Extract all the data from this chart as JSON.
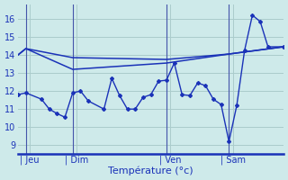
{
  "background_color": "#ceeaea",
  "line_color": "#1a32b8",
  "grid_color": "#aacccc",
  "xlabel": "Température (°c)",
  "xlabel_color": "#1a32b8",
  "ylabel_ticks": [
    9,
    10,
    11,
    12,
    13,
    14,
    15,
    16
  ],
  "ylim": [
    8.5,
    16.8
  ],
  "xlim": [
    0,
    34
  ],
  "day_labels": [
    "| Jeu",
    "| Dim",
    "| Ven",
    "| Sam"
  ],
  "day_positions": [
    1.5,
    7.5,
    19.5,
    27.5
  ],
  "vline_positions": [
    1,
    7,
    19,
    27
  ],
  "smooth1_x": [
    0,
    1,
    7,
    19,
    27,
    34
  ],
  "smooth1_y": [
    14.0,
    14.35,
    13.85,
    13.75,
    14.05,
    14.45
  ],
  "smooth2_x": [
    0,
    1,
    7,
    19,
    27,
    34
  ],
  "smooth2_y": [
    14.0,
    14.35,
    13.2,
    13.55,
    14.05,
    14.45
  ],
  "jagged_x": [
    0,
    1,
    3,
    4,
    5,
    6,
    7,
    8,
    9,
    11,
    12,
    13,
    14,
    15,
    16,
    17,
    18,
    19,
    20,
    21,
    22,
    23,
    24,
    25,
    26,
    27,
    28,
    29,
    30,
    31,
    32,
    34
  ],
  "jagged_y": [
    11.8,
    11.9,
    11.55,
    11.0,
    10.75,
    10.55,
    11.9,
    12.0,
    11.45,
    11.0,
    12.7,
    11.75,
    11.0,
    11.0,
    11.65,
    11.8,
    12.55,
    12.6,
    13.55,
    11.8,
    11.75,
    12.45,
    12.3,
    11.55,
    11.25,
    9.2,
    11.2,
    14.25,
    16.2,
    15.85,
    14.45,
    14.45
  ]
}
